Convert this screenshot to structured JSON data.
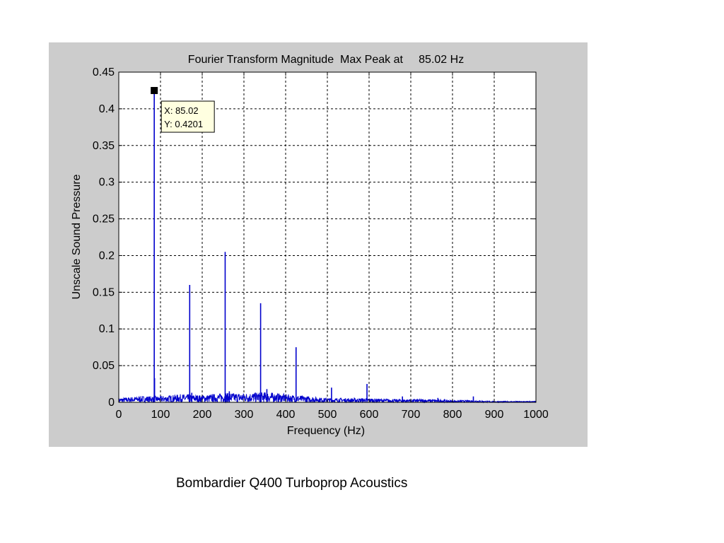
{
  "caption": "Bombardier Q400 Turboprop Acoustics",
  "colors": {
    "panel": "#cccccc",
    "plot_bg": "#ffffff",
    "line": "#0000cc",
    "grid": "#000000",
    "tooltip_bg": "#ffffe0"
  },
  "chart_data": {
    "type": "line",
    "title": "Fourier Transform Magnitude  Max Peak at     85.02 Hz",
    "xlabel": "Frequency (Hz)",
    "ylabel": "Unscale Sound Pressure",
    "xlim": [
      0,
      1000
    ],
    "ylim": [
      0,
      0.45
    ],
    "xticks": [
      0,
      100,
      200,
      300,
      400,
      500,
      600,
      700,
      800,
      900,
      1000
    ],
    "xtick_labels": [
      "0",
      "100",
      "200",
      "300",
      "400",
      "500",
      "600",
      "700",
      "800",
      "900",
      "1000"
    ],
    "yticks": [
      0,
      0.05,
      0.1,
      0.15,
      0.2,
      0.25,
      0.3,
      0.35,
      0.4,
      0.45
    ],
    "ytick_labels": [
      "0",
      "0.05",
      "0.1",
      "0.15",
      "0.2",
      "0.25",
      "0.3",
      "0.35",
      "0.4",
      "0.45"
    ],
    "grid": true,
    "grid_style": "dashed",
    "series": [
      {
        "peaks": [
          {
            "x": 85.02,
            "y": 0.4201
          },
          {
            "x": 85.8,
            "y": 0.033
          },
          {
            "x": 170,
            "y": 0.16
          },
          {
            "x": 255,
            "y": 0.205
          },
          {
            "x": 340,
            "y": 0.135
          },
          {
            "x": 425,
            "y": 0.075
          },
          {
            "x": 510,
            "y": 0.02
          },
          {
            "x": 595,
            "y": 0.025
          },
          {
            "x": 680,
            "y": 0.008
          },
          {
            "x": 765,
            "y": 0.006
          },
          {
            "x": 850,
            "y": 0.008
          },
          {
            "x": 265,
            "y": 0.015
          },
          {
            "x": 355,
            "y": 0.018
          },
          {
            "x": 175,
            "y": 0.013
          },
          {
            "x": 260,
            "y": 0.012
          }
        ],
        "noise_floor": [
          {
            "x": 0,
            "y": 0.004
          },
          {
            "x": 50,
            "y": 0.006
          },
          {
            "x": 100,
            "y": 0.006
          },
          {
            "x": 150,
            "y": 0.008
          },
          {
            "x": 200,
            "y": 0.007
          },
          {
            "x": 250,
            "y": 0.009
          },
          {
            "x": 300,
            "y": 0.009
          },
          {
            "x": 350,
            "y": 0.01
          },
          {
            "x": 400,
            "y": 0.008
          },
          {
            "x": 450,
            "y": 0.006
          },
          {
            "x": 500,
            "y": 0.004
          },
          {
            "x": 550,
            "y": 0.004
          },
          {
            "x": 600,
            "y": 0.004
          },
          {
            "x": 650,
            "y": 0.003
          },
          {
            "x": 700,
            "y": 0.003
          },
          {
            "x": 750,
            "y": 0.003
          },
          {
            "x": 800,
            "y": 0.002
          },
          {
            "x": 850,
            "y": 0.002
          },
          {
            "x": 900,
            "y": 0.001
          },
          {
            "x": 950,
            "y": 0.001
          },
          {
            "x": 1000,
            "y": 0.001
          }
        ]
      }
    ],
    "datatip": {
      "x": 85.02,
      "y": 0.4201,
      "x_label": "X: 85.02",
      "y_label": "Y: 0.4201"
    }
  }
}
